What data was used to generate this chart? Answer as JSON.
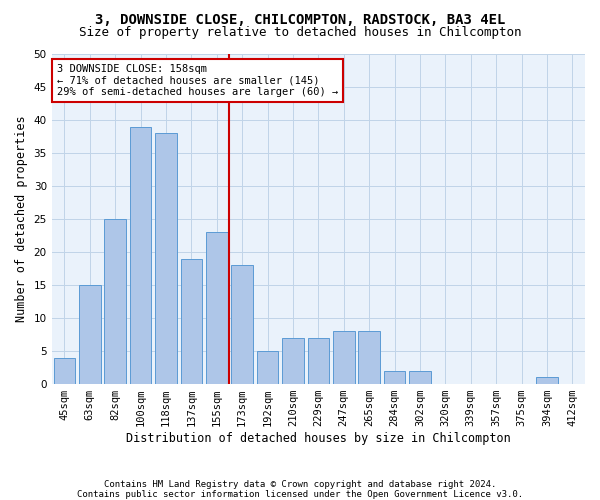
{
  "title1": "3, DOWNSIDE CLOSE, CHILCOMPTON, RADSTOCK, BA3 4EL",
  "title2": "Size of property relative to detached houses in Chilcompton",
  "xlabel": "Distribution of detached houses by size in Chilcompton",
  "ylabel": "Number of detached properties",
  "categories": [
    "45sqm",
    "63sqm",
    "82sqm",
    "100sqm",
    "118sqm",
    "137sqm",
    "155sqm",
    "173sqm",
    "192sqm",
    "210sqm",
    "229sqm",
    "247sqm",
    "265sqm",
    "284sqm",
    "302sqm",
    "320sqm",
    "339sqm",
    "357sqm",
    "375sqm",
    "394sqm",
    "412sqm"
  ],
  "values": [
    4,
    15,
    25,
    39,
    38,
    19,
    23,
    18,
    5,
    7,
    7,
    8,
    8,
    2,
    2,
    0,
    0,
    0,
    0,
    1,
    0
  ],
  "bar_color": "#aec6e8",
  "bar_edge_color": "#5b9bd5",
  "bar_width": 0.85,
  "vline_color": "#cc0000",
  "annotation_text": "3 DOWNSIDE CLOSE: 158sqm\n← 71% of detached houses are smaller (145)\n29% of semi-detached houses are larger (60) →",
  "annotation_box_color": "#ffffff",
  "annotation_box_edge_color": "#cc0000",
  "ylim": [
    0,
    50
  ],
  "yticks": [
    0,
    5,
    10,
    15,
    20,
    25,
    30,
    35,
    40,
    45,
    50
  ],
  "footer1": "Contains HM Land Registry data © Crown copyright and database right 2024.",
  "footer2": "Contains public sector information licensed under the Open Government Licence v3.0.",
  "bg_color": "#ffffff",
  "plot_bg_color": "#eaf2fb",
  "grid_color": "#c0d4e8",
  "title1_fontsize": 10,
  "title2_fontsize": 9,
  "axis_label_fontsize": 8.5,
  "tick_fontsize": 7.5,
  "annotation_fontsize": 7.5,
  "footer_fontsize": 6.5
}
